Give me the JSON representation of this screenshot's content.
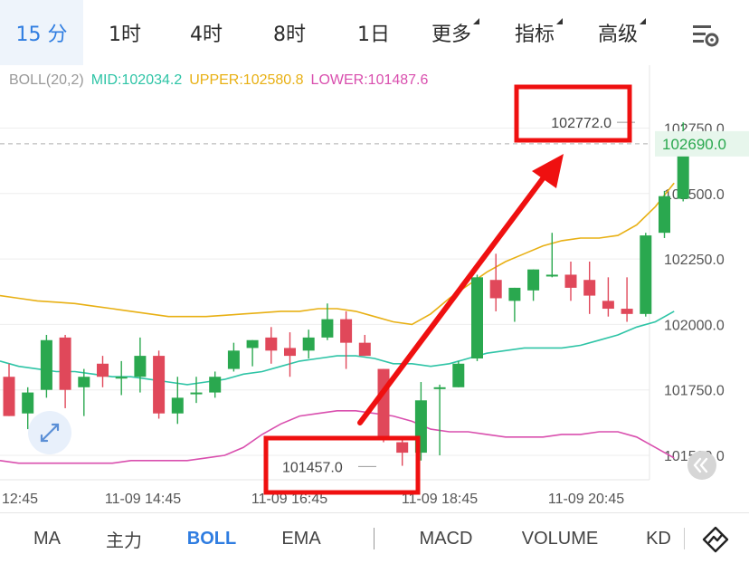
{
  "tabs": [
    {
      "label": "15 分",
      "active": true
    },
    {
      "label": "1时"
    },
    {
      "label": "4时"
    },
    {
      "label": "8时"
    },
    {
      "label": "1日"
    },
    {
      "label": "更多",
      "dropdown": true
    },
    {
      "label": "指标",
      "dropdown": true
    },
    {
      "label": "高级",
      "dropdown": true
    }
  ],
  "boll": {
    "name": "BOLL(20,2)",
    "mid": "MID:102034.2",
    "upper": "UPPER:102580.8",
    "lower": "LOWER:101487.6",
    "colors": {
      "name": "#999999",
      "mid": "#2ec4a6",
      "upper": "#e8b014",
      "lower": "#d94fae"
    }
  },
  "colors": {
    "up": "#2aa84f",
    "down": "#e0485a",
    "upper_band": "#e8b014",
    "mid_band": "#2ec4a6",
    "lower_band": "#d94fae",
    "arrow": "#ef1010",
    "accent": "#2f7de1"
  },
  "bottom_tabs": [
    {
      "label": "MA"
    },
    {
      "label": "主力"
    },
    {
      "label": "BOLL",
      "active": true
    },
    {
      "label": "EMA"
    },
    {
      "label": "MACD"
    },
    {
      "label": "VOLUME"
    },
    {
      "label": "KD"
    }
  ],
  "icons": {
    "settings": "chart-settings-icon",
    "expand": "expand-icon",
    "scroll_end": "double-chevron-icon",
    "indicator": "trend-line-icon"
  },
  "chart_data": {
    "type": "candlestick",
    "y_ticks": [
      "102750.0",
      "102500.0",
      "102250.0",
      "102000.0",
      "101750.0",
      "101500.0"
    ],
    "y_tick_values": [
      102750,
      102500,
      102250,
      102000,
      101750,
      101500
    ],
    "x_ticks": [
      "12:45",
      "11-09 14:45",
      "11-09 16:45",
      "11-09 18:45",
      "11-09 20:45"
    ],
    "current_price": "102690.0",
    "current_price_value": 102690,
    "high_label": "102772.0",
    "high_value": 102772,
    "low_label": "101457.0",
    "low_value": 101457,
    "ylim": [
      101400,
      102930
    ],
    "candles": [
      {
        "o": 101800,
        "h": 101850,
        "l": 101650,
        "c": 101650
      },
      {
        "o": 101660,
        "h": 101760,
        "l": 101600,
        "c": 101740
      },
      {
        "o": 101750,
        "h": 101960,
        "l": 101720,
        "c": 101940
      },
      {
        "o": 101950,
        "h": 101960,
        "l": 101680,
        "c": 101750
      },
      {
        "o": 101760,
        "h": 101830,
        "l": 101650,
        "c": 101800
      },
      {
        "o": 101850,
        "h": 101880,
        "l": 101760,
        "c": 101800
      },
      {
        "o": 101800,
        "h": 101860,
        "l": 101730,
        "c": 101800
      },
      {
        "o": 101800,
        "h": 101950,
        "l": 101740,
        "c": 101880
      },
      {
        "o": 101880,
        "h": 101900,
        "l": 101640,
        "c": 101660
      },
      {
        "o": 101660,
        "h": 101800,
        "l": 101620,
        "c": 101720
      },
      {
        "o": 101740,
        "h": 101800,
        "l": 101700,
        "c": 101740
      },
      {
        "o": 101740,
        "h": 101820,
        "l": 101720,
        "c": 101800
      },
      {
        "o": 101830,
        "h": 101930,
        "l": 101820,
        "c": 101900
      },
      {
        "o": 101910,
        "h": 101940,
        "l": 101840,
        "c": 101940
      },
      {
        "o": 101950,
        "h": 101990,
        "l": 101850,
        "c": 101900
      },
      {
        "o": 101910,
        "h": 101970,
        "l": 101800,
        "c": 101880
      },
      {
        "o": 101900,
        "h": 101980,
        "l": 101870,
        "c": 101950
      },
      {
        "o": 101950,
        "h": 102080,
        "l": 101940,
        "c": 102020
      },
      {
        "o": 102020,
        "h": 102050,
        "l": 101830,
        "c": 101930
      },
      {
        "o": 101930,
        "h": 101960,
        "l": 101880,
        "c": 101880
      },
      {
        "o": 101830,
        "h": 101830,
        "l": 101550,
        "c": 101560
      },
      {
        "o": 101550,
        "h": 101570,
        "l": 101460,
        "c": 101510
      },
      {
        "o": 101510,
        "h": 101780,
        "l": 101480,
        "c": 101710
      },
      {
        "o": 101760,
        "h": 101770,
        "l": 101500,
        "c": 101760
      },
      {
        "o": 101760,
        "h": 101860,
        "l": 101760,
        "c": 101850
      },
      {
        "o": 101870,
        "h": 102190,
        "l": 101860,
        "c": 102180
      },
      {
        "o": 102170,
        "h": 102270,
        "l": 102050,
        "c": 102100
      },
      {
        "o": 102090,
        "h": 102140,
        "l": 102010,
        "c": 102140
      },
      {
        "o": 102130,
        "h": 102210,
        "l": 102090,
        "c": 102210
      },
      {
        "o": 102190,
        "h": 102350,
        "l": 102180,
        "c": 102190
      },
      {
        "o": 102190,
        "h": 102240,
        "l": 102090,
        "c": 102140
      },
      {
        "o": 102170,
        "h": 102240,
        "l": 102040,
        "c": 102110
      },
      {
        "o": 102090,
        "h": 102180,
        "l": 102030,
        "c": 102060
      },
      {
        "o": 102060,
        "h": 102180,
        "l": 102010,
        "c": 102040
      },
      {
        "o": 102040,
        "h": 102350,
        "l": 102030,
        "c": 102340
      },
      {
        "o": 102350,
        "h": 102510,
        "l": 102330,
        "c": 102490
      },
      {
        "o": 102480,
        "h": 102772,
        "l": 102470,
        "c": 102690
      }
    ],
    "upper_band": [
      102110,
      102100,
      102090,
      102085,
      102080,
      102070,
      102060,
      102050,
      102040,
      102030,
      102030,
      102030,
      102035,
      102040,
      102045,
      102050,
      102050,
      102060,
      102060,
      102050,
      102030,
      102010,
      102000,
      102040,
      102100,
      102150,
      102200,
      102240,
      102270,
      102300,
      102320,
      102330,
      102330,
      102340,
      102380,
      102450,
      102540
    ],
    "mid_band": [
      101860,
      101840,
      101830,
      101820,
      101820,
      101810,
      101800,
      101800,
      101790,
      101780,
      101770,
      101780,
      101790,
      101810,
      101820,
      101840,
      101860,
      101870,
      101880,
      101880,
      101870,
      101850,
      101850,
      101840,
      101850,
      101870,
      101890,
      101900,
      101910,
      101910,
      101910,
      101920,
      101940,
      101960,
      101990,
      102010,
      102050
    ],
    "lower_band": [
      101480,
      101470,
      101470,
      101470,
      101470,
      101470,
      101470,
      101480,
      101480,
      101480,
      101480,
      101490,
      101500,
      101530,
      101580,
      101620,
      101650,
      101660,
      101670,
      101670,
      101660,
      101650,
      101630,
      101600,
      101590,
      101590,
      101580,
      101570,
      101570,
      101570,
      101580,
      101580,
      101590,
      101590,
      101570,
      101530,
      101490
    ]
  }
}
